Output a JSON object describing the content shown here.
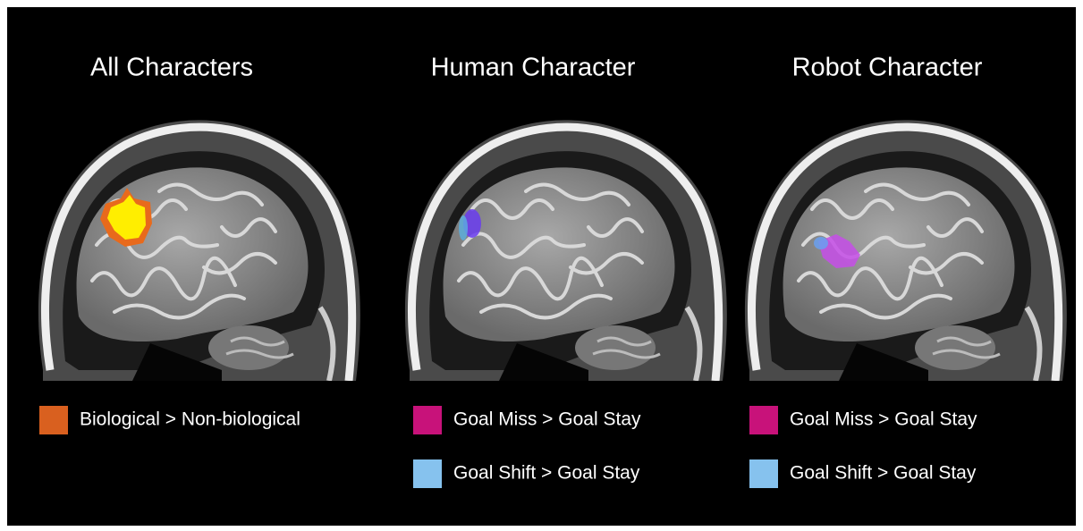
{
  "panels": [
    {
      "title": "All Characters",
      "legend": [
        {
          "label": "Biological > Non-biological",
          "color": "#d9601f"
        }
      ]
    },
    {
      "title": "Human Character",
      "legend": [
        {
          "label": "Goal Miss > Goal Stay",
          "color": "#c8127a"
        },
        {
          "label": "Goal Shift > Goal Stay",
          "color": "#86c2ee"
        }
      ]
    },
    {
      "title": "Robot Character",
      "legend": [
        {
          "label": "Goal Miss > Goal Stay",
          "color": "#c8127a"
        },
        {
          "label": "Goal Shift > Goal Stay",
          "color": "#86c2ee"
        }
      ]
    }
  ]
}
